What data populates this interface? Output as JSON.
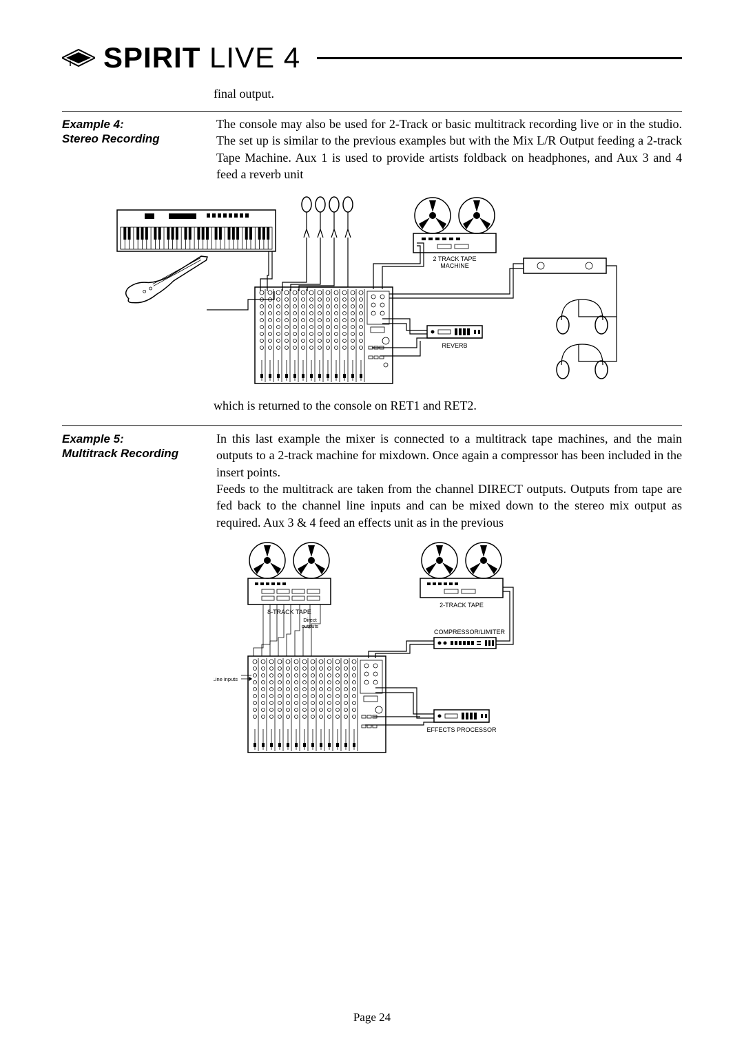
{
  "header": {
    "brand_bold": "SPIRIT",
    "brand_light": " LIVE 4"
  },
  "intro": "final output.",
  "example4": {
    "title_line1": "Example 4:",
    "title_line2": "Stereo Recording",
    "body": "The console may also be used for 2-Track or basic multitrack recording live or in the studio.  The set up is similar to the previous examples but with the Mix L/R Output feeding a 2-track Tape Machine.  Aux 1 is used to provide artists foldback on headphones, and Aux 3 and 4 feed a reverb unit"
  },
  "diagram1": {
    "labels": {
      "tape_machine": "2 TRACK TAPE",
      "tape_machine2": "MACHINE",
      "reverb": "REVERB"
    }
  },
  "caption1": "which is returned to the console on RET1 and RET2.",
  "example5": {
    "title_line1": "Example 5:",
    "title_line2": "Multitrack Recording",
    "body1": "In this last example the mixer is connected to a multitrack tape machines, and the main outputs to a 2-track machine for mixdown. Once again a compressor has been included in the insert points.",
    "body2": "Feeds to the multitrack are taken from the channel DIRECT outputs.  Outputs from tape are fed back to the channel line inputs and can be mixed down to the stereo mix output as required.  Aux 3  & 4 feed an effects unit as in the previous"
  },
  "diagram2": {
    "labels": {
      "tape8": "8-TRACK TAPE",
      "tape2": "2-TRACK TAPE",
      "direct": "Direct",
      "outputs": "outputs",
      "line_inputs": "Line inputs",
      "compressor": "COMPRESSOR/LIMITER",
      "effects": "EFFECTS PROCESSOR"
    }
  },
  "footer": "Page 24"
}
